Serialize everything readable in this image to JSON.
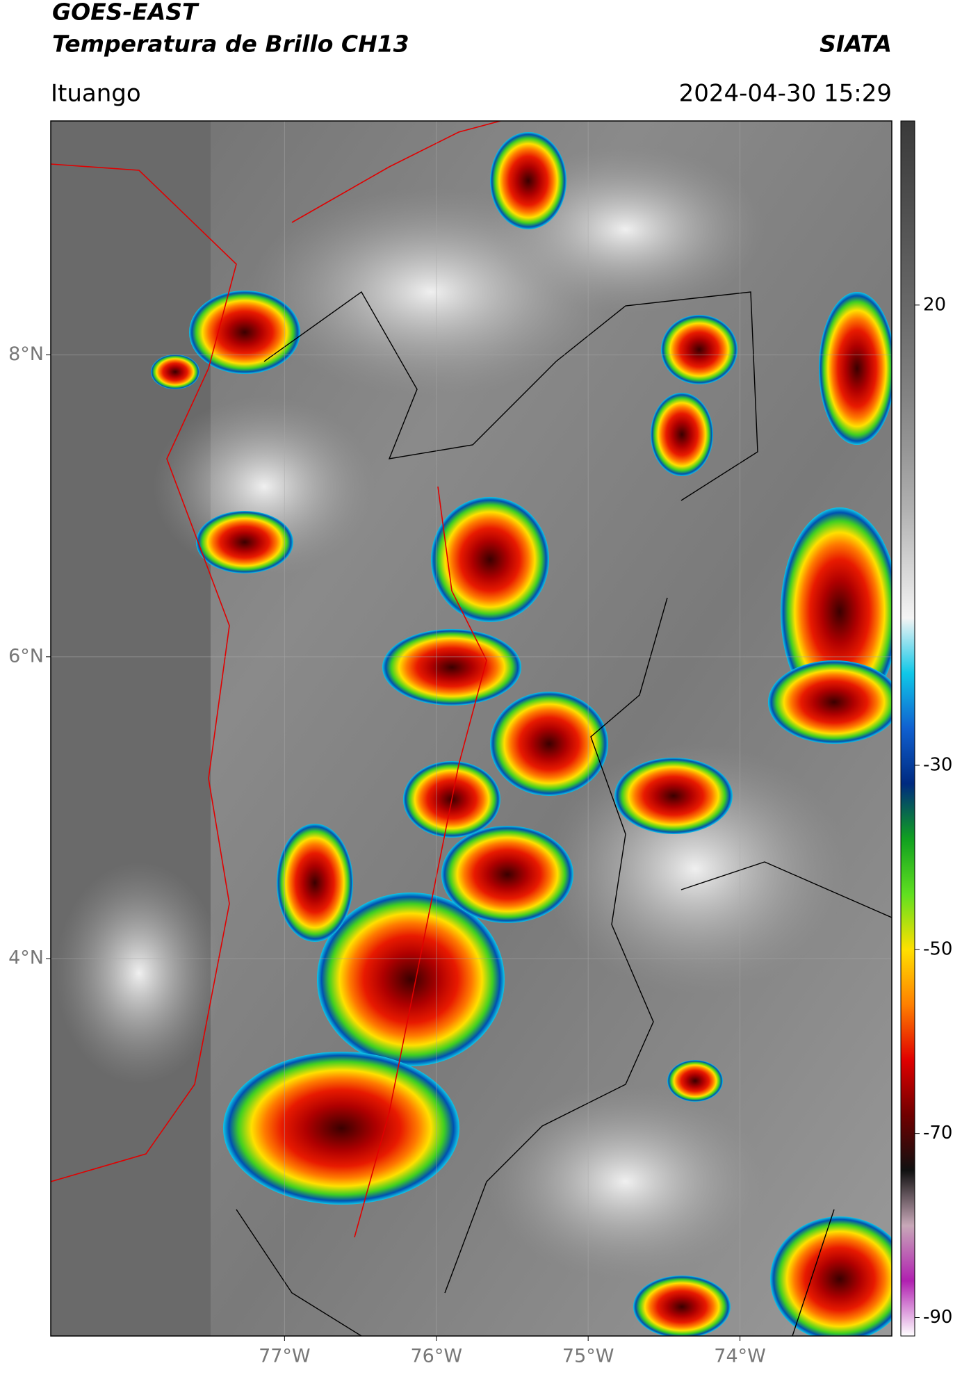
{
  "chart_data": {
    "type": "map",
    "title": "GOES-EAST",
    "subtitle": "Temperatura de Brillo CH13",
    "source": "SIATA",
    "location": "Ituango",
    "datetime": "2024-04-30 15:29",
    "xlim": [
      -78.54,
      -73
    ],
    "ylim": [
      1.5,
      9.55
    ],
    "xticks": [
      {
        "value": -77,
        "label": "77°W"
      },
      {
        "value": -76,
        "label": "76°W"
      },
      {
        "value": -75,
        "label": "75°W"
      },
      {
        "value": -74,
        "label": "74°W"
      }
    ],
    "yticks": [
      {
        "value": 8,
        "label": "8°N"
      },
      {
        "value": 6,
        "label": "6°N"
      },
      {
        "value": 4,
        "label": "4°N"
      }
    ],
    "grid": true,
    "colorbar": {
      "lim": [
        -92,
        40
      ],
      "ticks": [
        20,
        -30,
        -50,
        -70,
        -90
      ],
      "colors": [
        "#3a3a3a",
        "#474747",
        "#555555",
        "#636363",
        "#727272",
        "#838383",
        "#979797",
        "#b0b0b0",
        "#d2d2d2",
        "#f4f4f4",
        "#10c8e8",
        "#1060d0",
        "#002a80",
        "#10a020",
        "#60e020",
        "#ffe000",
        "#ff8000",
        "#e00000",
        "#700000",
        "#101010",
        "#c8a8b8",
        "#b020b0",
        "#ffffff"
      ]
    }
  }
}
